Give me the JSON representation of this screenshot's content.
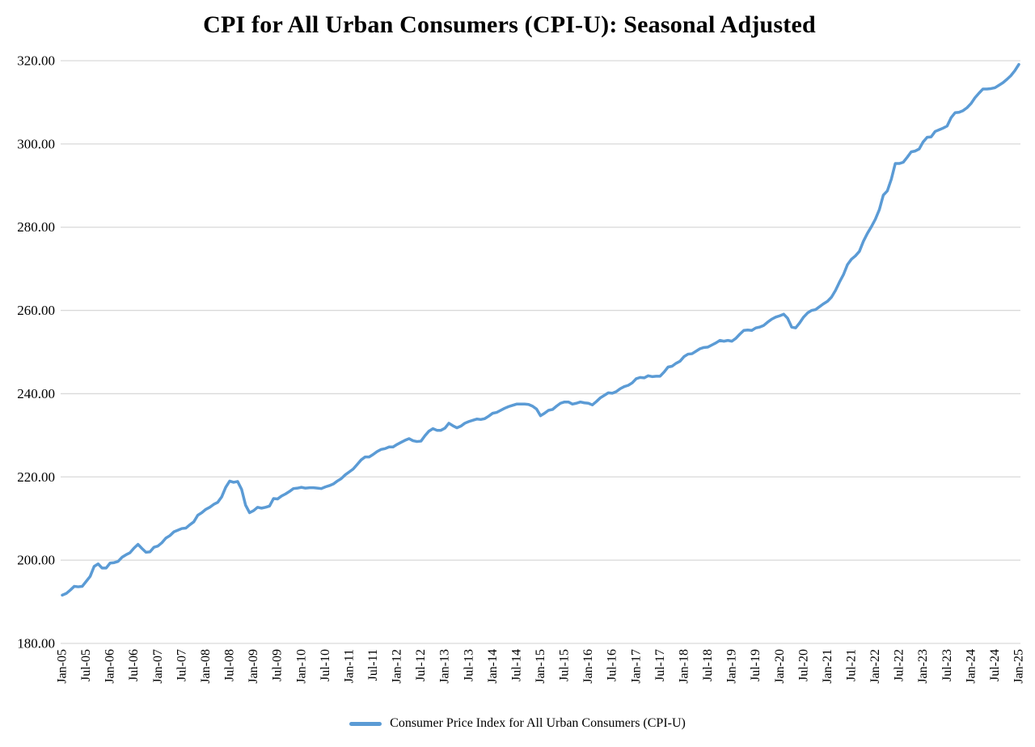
{
  "title": "CPI for All Urban Consumers (CPI-U): Seasonal Adjusted",
  "legend": {
    "label": "Consumer Price Index for All Urban Consumers (CPI-U)",
    "color": "#5B9BD5"
  },
  "colors": {
    "line": "#5B9BD5",
    "gridline": "#D9D9D9",
    "text": "#000000",
    "background": "#FFFFFF"
  },
  "chart_data": {
    "type": "line",
    "title": "CPI for All Urban Consumers (CPI-U): Seasonal Adjusted",
    "xlabel": "",
    "ylabel": "",
    "grid": "horizontal",
    "legend_position": "bottom",
    "y_axis": {
      "min": 180,
      "max": 320,
      "step": 20,
      "tick_labels": [
        "180.00",
        "200.00",
        "220.00",
        "240.00",
        "260.00",
        "280.00",
        "300.00",
        "320.00"
      ]
    },
    "x_axis": {
      "start": "Jan-05",
      "end": "Jan-25",
      "frequency": "monthly",
      "tick_every_n_points": 6,
      "tick_labels": [
        "Jan-05",
        "Jul-05",
        "Jan-06",
        "Jul-06",
        "Jan-07",
        "Jul-07",
        "Jan-08",
        "Jul-08",
        "Jan-09",
        "Jul-09",
        "Jan-10",
        "Jul-10",
        "Jan-11",
        "Jul-11",
        "Jan-12",
        "Jul-12",
        "Jan-13",
        "Jul-13",
        "Jan-14",
        "Jul-14",
        "Jan-15",
        "Jul-15",
        "Jan-16",
        "Jul-16",
        "Jan-17",
        "Jul-17",
        "Jan-18",
        "Jul-18",
        "Jan-19",
        "Jul-19",
        "Jan-20",
        "Jul-20",
        "Jan-21",
        "Jul-21",
        "Jan-22",
        "Jul-22",
        "Jan-23",
        "Jul-23",
        "Jan-24",
        "Jul-24",
        "Jan-25"
      ]
    },
    "series": [
      {
        "name": "Consumer Price Index for All Urban Consumers (CPI-U)",
        "color": "#5B9BD5",
        "values": [
          191.6,
          192.0,
          192.8,
          193.7,
          193.6,
          193.7,
          194.9,
          196.1,
          198.5,
          199.1,
          198.1,
          198.1,
          199.3,
          199.4,
          199.7,
          200.7,
          201.3,
          201.8,
          202.9,
          203.8,
          202.8,
          201.9,
          202.0,
          203.1,
          203.4,
          204.2,
          205.3,
          205.9,
          206.8,
          207.2,
          207.6,
          207.7,
          208.5,
          209.2,
          210.8,
          211.4,
          212.2,
          212.7,
          213.4,
          213.9,
          215.2,
          217.5,
          219.0,
          218.7,
          218.9,
          217.0,
          213.2,
          211.4,
          211.9,
          212.7,
          212.5,
          212.7,
          213.0,
          214.8,
          214.7,
          215.4,
          215.9,
          216.5,
          217.2,
          217.3,
          217.5,
          217.3,
          217.4,
          217.4,
          217.3,
          217.2,
          217.6,
          217.9,
          218.3,
          219.0,
          219.6,
          220.5,
          221.2,
          221.9,
          223.0,
          224.1,
          224.8,
          224.8,
          225.4,
          226.1,
          226.6,
          226.8,
          227.2,
          227.2,
          227.8,
          228.3,
          228.8,
          229.2,
          228.7,
          228.5,
          228.6,
          229.9,
          231.0,
          231.6,
          231.2,
          231.2,
          231.7,
          232.9,
          232.3,
          231.8,
          232.2,
          232.9,
          233.3,
          233.6,
          233.9,
          233.8,
          234.0,
          234.6,
          235.3,
          235.5,
          236.0,
          236.5,
          236.9,
          237.2,
          237.5,
          237.5,
          237.5,
          237.4,
          237.0,
          236.3,
          234.7,
          235.3,
          236.0,
          236.2,
          237.0,
          237.7,
          238.0,
          238.0,
          237.5,
          237.7,
          238.0,
          237.8,
          237.7,
          237.3,
          238.1,
          239.0,
          239.6,
          240.2,
          240.1,
          240.5,
          241.2,
          241.7,
          242.0,
          242.6,
          243.6,
          243.9,
          243.8,
          244.3,
          244.1,
          244.2,
          244.2,
          245.2,
          246.4,
          246.6,
          247.3,
          247.8,
          248.9,
          249.5,
          249.6,
          250.2,
          250.8,
          251.1,
          251.2,
          251.7,
          252.2,
          252.8,
          252.6,
          252.8,
          252.6,
          253.3,
          254.3,
          255.2,
          255.3,
          255.2,
          255.8,
          256.0,
          256.4,
          257.2,
          257.9,
          258.4,
          258.7,
          259.1,
          258.1,
          256.0,
          255.8,
          257.0,
          258.4,
          259.4,
          260.0,
          260.2,
          260.9,
          261.6,
          262.2,
          263.2,
          264.8,
          266.8,
          268.6,
          271.0,
          272.3,
          273.1,
          274.2,
          276.6,
          278.5,
          280.1,
          281.9,
          284.2,
          287.7,
          288.7,
          291.5,
          295.3,
          295.3,
          295.6,
          296.8,
          298.1,
          298.3,
          298.8,
          300.5,
          301.6,
          301.7,
          303.0,
          303.4,
          303.8,
          304.3,
          306.3,
          307.5,
          307.6,
          308.0,
          308.7,
          309.7,
          311.1,
          312.2,
          313.2,
          313.2,
          313.3,
          313.5,
          314.1,
          314.7,
          315.5,
          316.4,
          317.6,
          319.1
        ]
      }
    ]
  }
}
